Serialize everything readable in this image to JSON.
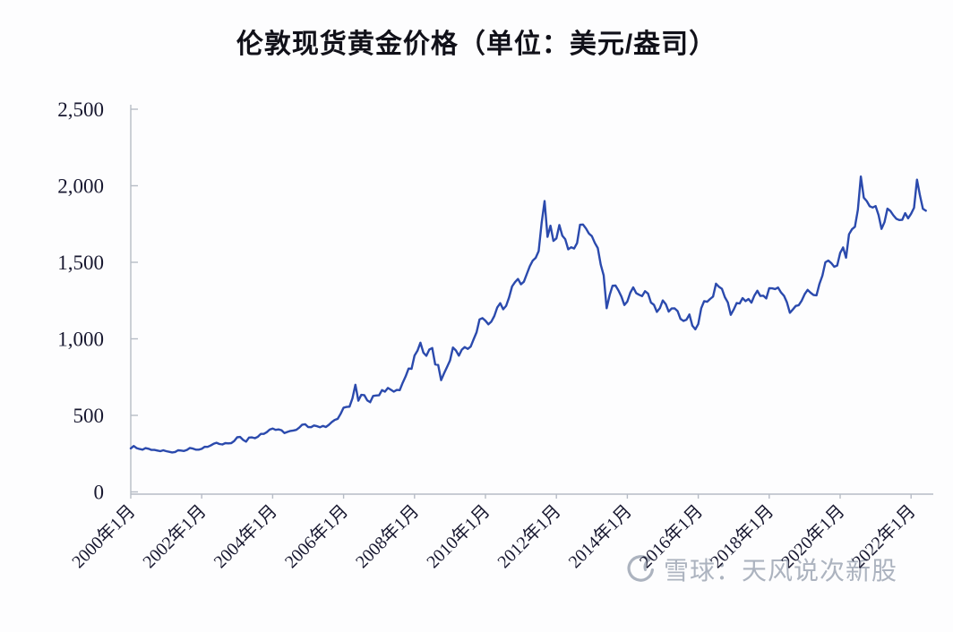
{
  "page": {
    "background": "#fdfdfe"
  },
  "title": "伦敦现货黄金价格（单位：美元/盎司）",
  "watermark": {
    "text": "雪球：天风说次新股",
    "logo": "xueqiu-snowball",
    "color": "#98a1b0"
  },
  "chart_data": {
    "type": "line",
    "title": "伦敦现货黄金价格（单位：美元/盎司）",
    "series_name": "伦敦现货黄金价格",
    "unit": "美元/盎司",
    "x_start": "2000-01",
    "x_end": "2022-06",
    "x_interval": "monthly",
    "values": [
      284,
      300,
      286,
      280,
      276,
      286,
      282,
      274,
      274,
      270,
      266,
      272,
      266,
      262,
      258,
      261,
      272,
      270,
      267,
      274,
      287,
      283,
      276,
      276,
      281,
      295,
      294,
      303,
      314,
      321,
      313,
      310,
      319,
      317,
      319,
      333,
      357,
      359,
      340,
      328,
      355,
      356,
      351,
      360,
      379,
      379,
      390,
      407,
      414,
      405,
      408,
      403,
      384,
      392,
      398,
      401,
      405,
      420,
      439,
      442,
      424,
      423,
      434,
      429,
      422,
      431,
      424,
      438,
      456,
      470,
      477,
      510,
      550,
      555,
      557,
      611,
      700,
      596,
      634,
      632,
      598,
      586,
      627,
      630,
      631,
      665,
      655,
      679,
      667,
      655,
      666,
      665,
      713,
      755,
      806,
      804,
      890,
      922,
      975,
      910,
      889,
      930,
      940,
      833,
      829,
      730,
      775,
      816,
      858,
      943,
      924,
      890,
      929,
      946,
      934,
      949,
      997,
      1043,
      1127,
      1135,
      1118,
      1095,
      1113,
      1149,
      1205,
      1233,
      1193,
      1216,
      1271,
      1342,
      1370,
      1391,
      1356,
      1373,
      1424,
      1474,
      1511,
      1529,
      1573,
      1756,
      1900,
      1666,
      1739,
      1640,
      1656,
      1743,
      1674,
      1650,
      1585,
      1598,
      1590,
      1626,
      1745,
      1747,
      1721,
      1688,
      1671,
      1627,
      1593,
      1485,
      1414,
      1200,
      1285,
      1347,
      1348,
      1316,
      1276,
      1221,
      1244,
      1301,
      1336,
      1299,
      1288,
      1279,
      1311,
      1296,
      1237,
      1222,
      1176,
      1200,
      1251,
      1227,
      1178,
      1198,
      1199,
      1181,
      1130,
      1117,
      1125,
      1159,
      1086,
      1062,
      1097,
      1200,
      1246,
      1242,
      1260,
      1276,
      1360,
      1340,
      1327,
      1272,
      1238,
      1157,
      1192,
      1234,
      1231,
      1266,
      1246,
      1260,
      1236,
      1283,
      1314,
      1280,
      1282,
      1264,
      1331,
      1330,
      1325,
      1335,
      1303,
      1281,
      1238,
      1170,
      1192,
      1215,
      1220,
      1250,
      1292,
      1320,
      1301,
      1286,
      1284,
      1359,
      1413,
      1500,
      1511,
      1495,
      1471,
      1479,
      1561,
      1597,
      1530,
      1683,
      1716,
      1732,
      1843,
      2060,
      1922,
      1900,
      1866,
      1858,
      1867,
      1808,
      1718,
      1762,
      1850,
      1835,
      1807,
      1784,
      1776,
      1777,
      1821,
      1787,
      1817,
      1856,
      2040,
      1937,
      1849,
      1837
    ],
    "xtick_labels": [
      "2000年1月",
      "2002年1月",
      "2004年1月",
      "2006年1月",
      "2008年1月",
      "2010年1月",
      "2012年1月",
      "2014年1月",
      "2016年1月",
      "2018年1月",
      "2020年1月",
      "2022年1月"
    ],
    "ytick_values": [
      0,
      500,
      1000,
      1500,
      2000,
      2500
    ],
    "ytick_labels": [
      "0",
      "500",
      "1,000",
      "1,500",
      "2,000",
      "2,500"
    ],
    "ylim": [
      0,
      2500
    ],
    "grid": false,
    "legend": "none",
    "line_color": "#2b4aad",
    "axis_color": "#b6bcc6",
    "label_color": "#17172f"
  }
}
